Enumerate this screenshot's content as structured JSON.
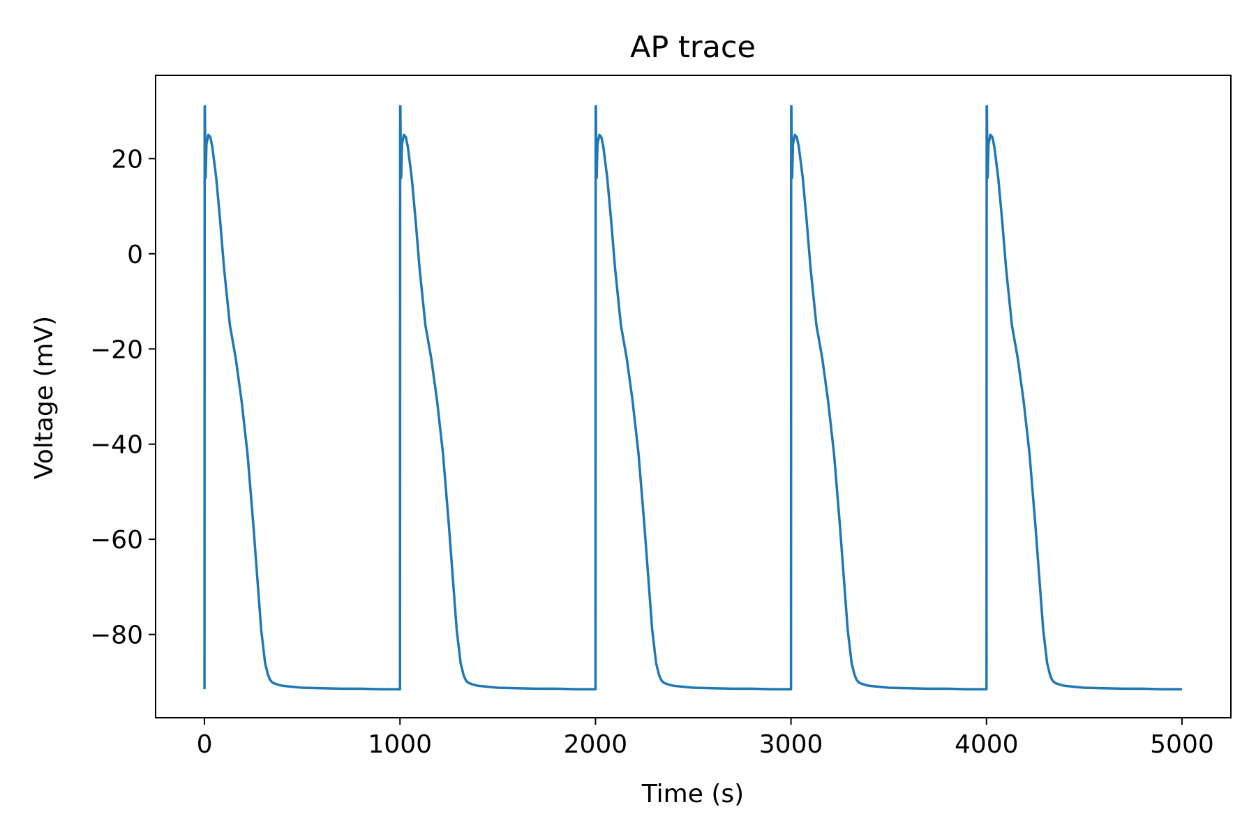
{
  "chart_data": {
    "type": "line",
    "title": "AP trace",
    "xlabel": "Time (s)",
    "ylabel": "Voltage (mV)",
    "xlim": [
      -250,
      5250
    ],
    "ylim": [
      -97.5,
      37.5
    ],
    "xticks": [
      0,
      1000,
      2000,
      3000,
      4000,
      5000
    ],
    "xtick_labels": [
      "0",
      "1000",
      "2000",
      "3000",
      "4000",
      "5000"
    ],
    "yticks": [
      20,
      0,
      -20,
      -40,
      -60,
      -80
    ],
    "ytick_labels": [
      "20",
      "0",
      "−20",
      "−40",
      "−60",
      "−80"
    ],
    "grid": false,
    "legend": "none",
    "series": [
      {
        "color": "#1f77b4",
        "x": [
          0,
          1,
          2,
          5,
          6,
          10,
          20,
          30,
          40,
          60,
          80,
          100,
          130,
          160,
          190,
          220,
          250,
          270,
          290,
          310,
          325,
          335,
          345,
          352,
          358,
          365,
          372,
          380,
          400,
          450,
          500,
          600,
          700,
          800,
          900,
          999.9,
          1000,
          1001,
          1002,
          1005,
          1006,
          1010,
          1020,
          1030,
          1040,
          1060,
          1080,
          1100,
          1130,
          1160,
          1190,
          1220,
          1250,
          1270,
          1290,
          1310,
          1325,
          1335,
          1345,
          1352,
          1358,
          1365,
          1372,
          1380,
          1400,
          1450,
          1500,
          1600,
          1700,
          1800,
          1900,
          1999.9,
          2000,
          2001,
          2002,
          2005,
          2006,
          2010,
          2020,
          2030,
          2040,
          2060,
          2080,
          2100,
          2130,
          2160,
          2190,
          2220,
          2250,
          2270,
          2290,
          2310,
          2325,
          2335,
          2345,
          2352,
          2358,
          2365,
          2372,
          2380,
          2400,
          2450,
          2500,
          2600,
          2700,
          2800,
          2900,
          2999.9,
          3000,
          3001,
          3002,
          3005,
          3006,
          3010,
          3020,
          3030,
          3040,
          3060,
          3080,
          3100,
          3130,
          3160,
          3190,
          3220,
          3250,
          3270,
          3290,
          3310,
          3325,
          3335,
          3345,
          3352,
          3358,
          3365,
          3372,
          3380,
          3400,
          3450,
          3500,
          3600,
          3700,
          3800,
          3900,
          3999.9,
          4000,
          4001,
          4002,
          4005,
          4006,
          4010,
          4020,
          4030,
          4040,
          4060,
          4080,
          4100,
          4130,
          4160,
          4190,
          4220,
          4250,
          4270,
          4290,
          4310,
          4325,
          4335,
          4345,
          4352,
          4358,
          4365,
          4372,
          4380,
          4400,
          4450,
          4500,
          4600,
          4700,
          4800,
          4900,
          5000
        ],
        "y": [
          -91.5,
          31,
          31,
          16,
          16,
          23,
          25,
          24.5,
          22.5,
          16,
          7,
          -3,
          -15,
          -22,
          -31,
          -42,
          -57,
          -68,
          -79,
          -86,
          -88.5,
          -89.5,
          -90,
          -90.2,
          -90.3,
          -90.4,
          -90.5,
          -90.6,
          -90.8,
          -91.0,
          -91.2,
          -91.3,
          -91.4,
          -91.4,
          -91.5,
          -91.5,
          -91.5,
          31,
          31,
          16,
          16,
          23,
          25,
          24.5,
          22.5,
          16,
          7,
          -3,
          -15,
          -22,
          -31,
          -42,
          -57,
          -68,
          -79,
          -86,
          -88.5,
          -89.5,
          -90,
          -90.2,
          -90.3,
          -90.4,
          -90.5,
          -90.6,
          -90.8,
          -91.0,
          -91.2,
          -91.3,
          -91.4,
          -91.4,
          -91.5,
          -91.5,
          -91.5,
          31,
          31,
          16,
          16,
          23,
          25,
          24.5,
          22.5,
          16,
          7,
          -3,
          -15,
          -22,
          -31,
          -42,
          -57,
          -68,
          -79,
          -86,
          -88.5,
          -89.5,
          -90,
          -90.2,
          -90.3,
          -90.4,
          -90.5,
          -90.6,
          -90.8,
          -91.0,
          -91.2,
          -91.3,
          -91.4,
          -91.4,
          -91.5,
          -91.5,
          -91.5,
          31,
          31,
          16,
          16,
          23,
          25,
          24.5,
          22.5,
          16,
          7,
          -3,
          -15,
          -22,
          -31,
          -42,
          -57,
          -68,
          -79,
          -86,
          -88.5,
          -89.5,
          -90,
          -90.2,
          -90.3,
          -90.4,
          -90.5,
          -90.6,
          -90.8,
          -91.0,
          -91.2,
          -91.3,
          -91.4,
          -91.4,
          -91.5,
          -91.5,
          -91.5,
          31,
          31,
          16,
          16,
          23,
          25,
          24.5,
          22.5,
          16,
          7,
          -3,
          -15,
          -22,
          -31,
          -42,
          -57,
          -68,
          -79,
          -86,
          -88.5,
          -89.5,
          -90,
          -90.2,
          -90.3,
          -90.4,
          -90.5,
          -90.6,
          -90.8,
          -91.0,
          -91.2,
          -91.3,
          -91.4,
          -91.4,
          -91.5,
          -91.5
        ]
      }
    ]
  }
}
